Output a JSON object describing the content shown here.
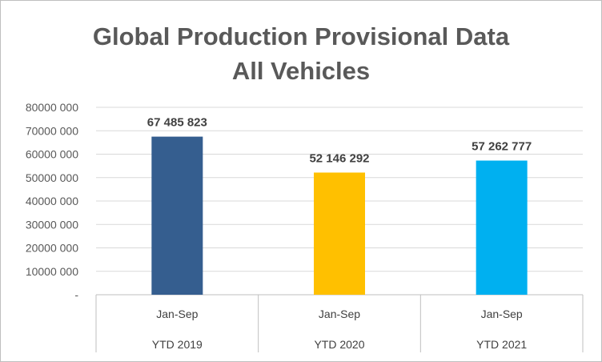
{
  "chart_data": {
    "type": "bar",
    "title_line1": "Global Production Provisional Data",
    "title_line2": "All Vehicles",
    "categories": [
      {
        "sub": "Jan-Sep",
        "group": "YTD 2019"
      },
      {
        "sub": "Jan-Sep",
        "group": "YTD 2020"
      },
      {
        "sub": "Jan-Sep",
        "group": "YTD 2021"
      }
    ],
    "values": [
      67485823,
      52146292,
      57262777
    ],
    "value_labels": [
      "67 485 823",
      "52 146 292",
      "57 262 777"
    ],
    "bar_colors": [
      "#355E8F",
      "#FFC000",
      "#00B0F0"
    ],
    "ylim": [
      0,
      80000000
    ],
    "yticks": [
      "-",
      "10000 000",
      "20000 000",
      "30000 000",
      "40000 000",
      "50000 000",
      "60000 000",
      "70000 000",
      "80000 000"
    ],
    "grid": true,
    "legend": "none"
  }
}
